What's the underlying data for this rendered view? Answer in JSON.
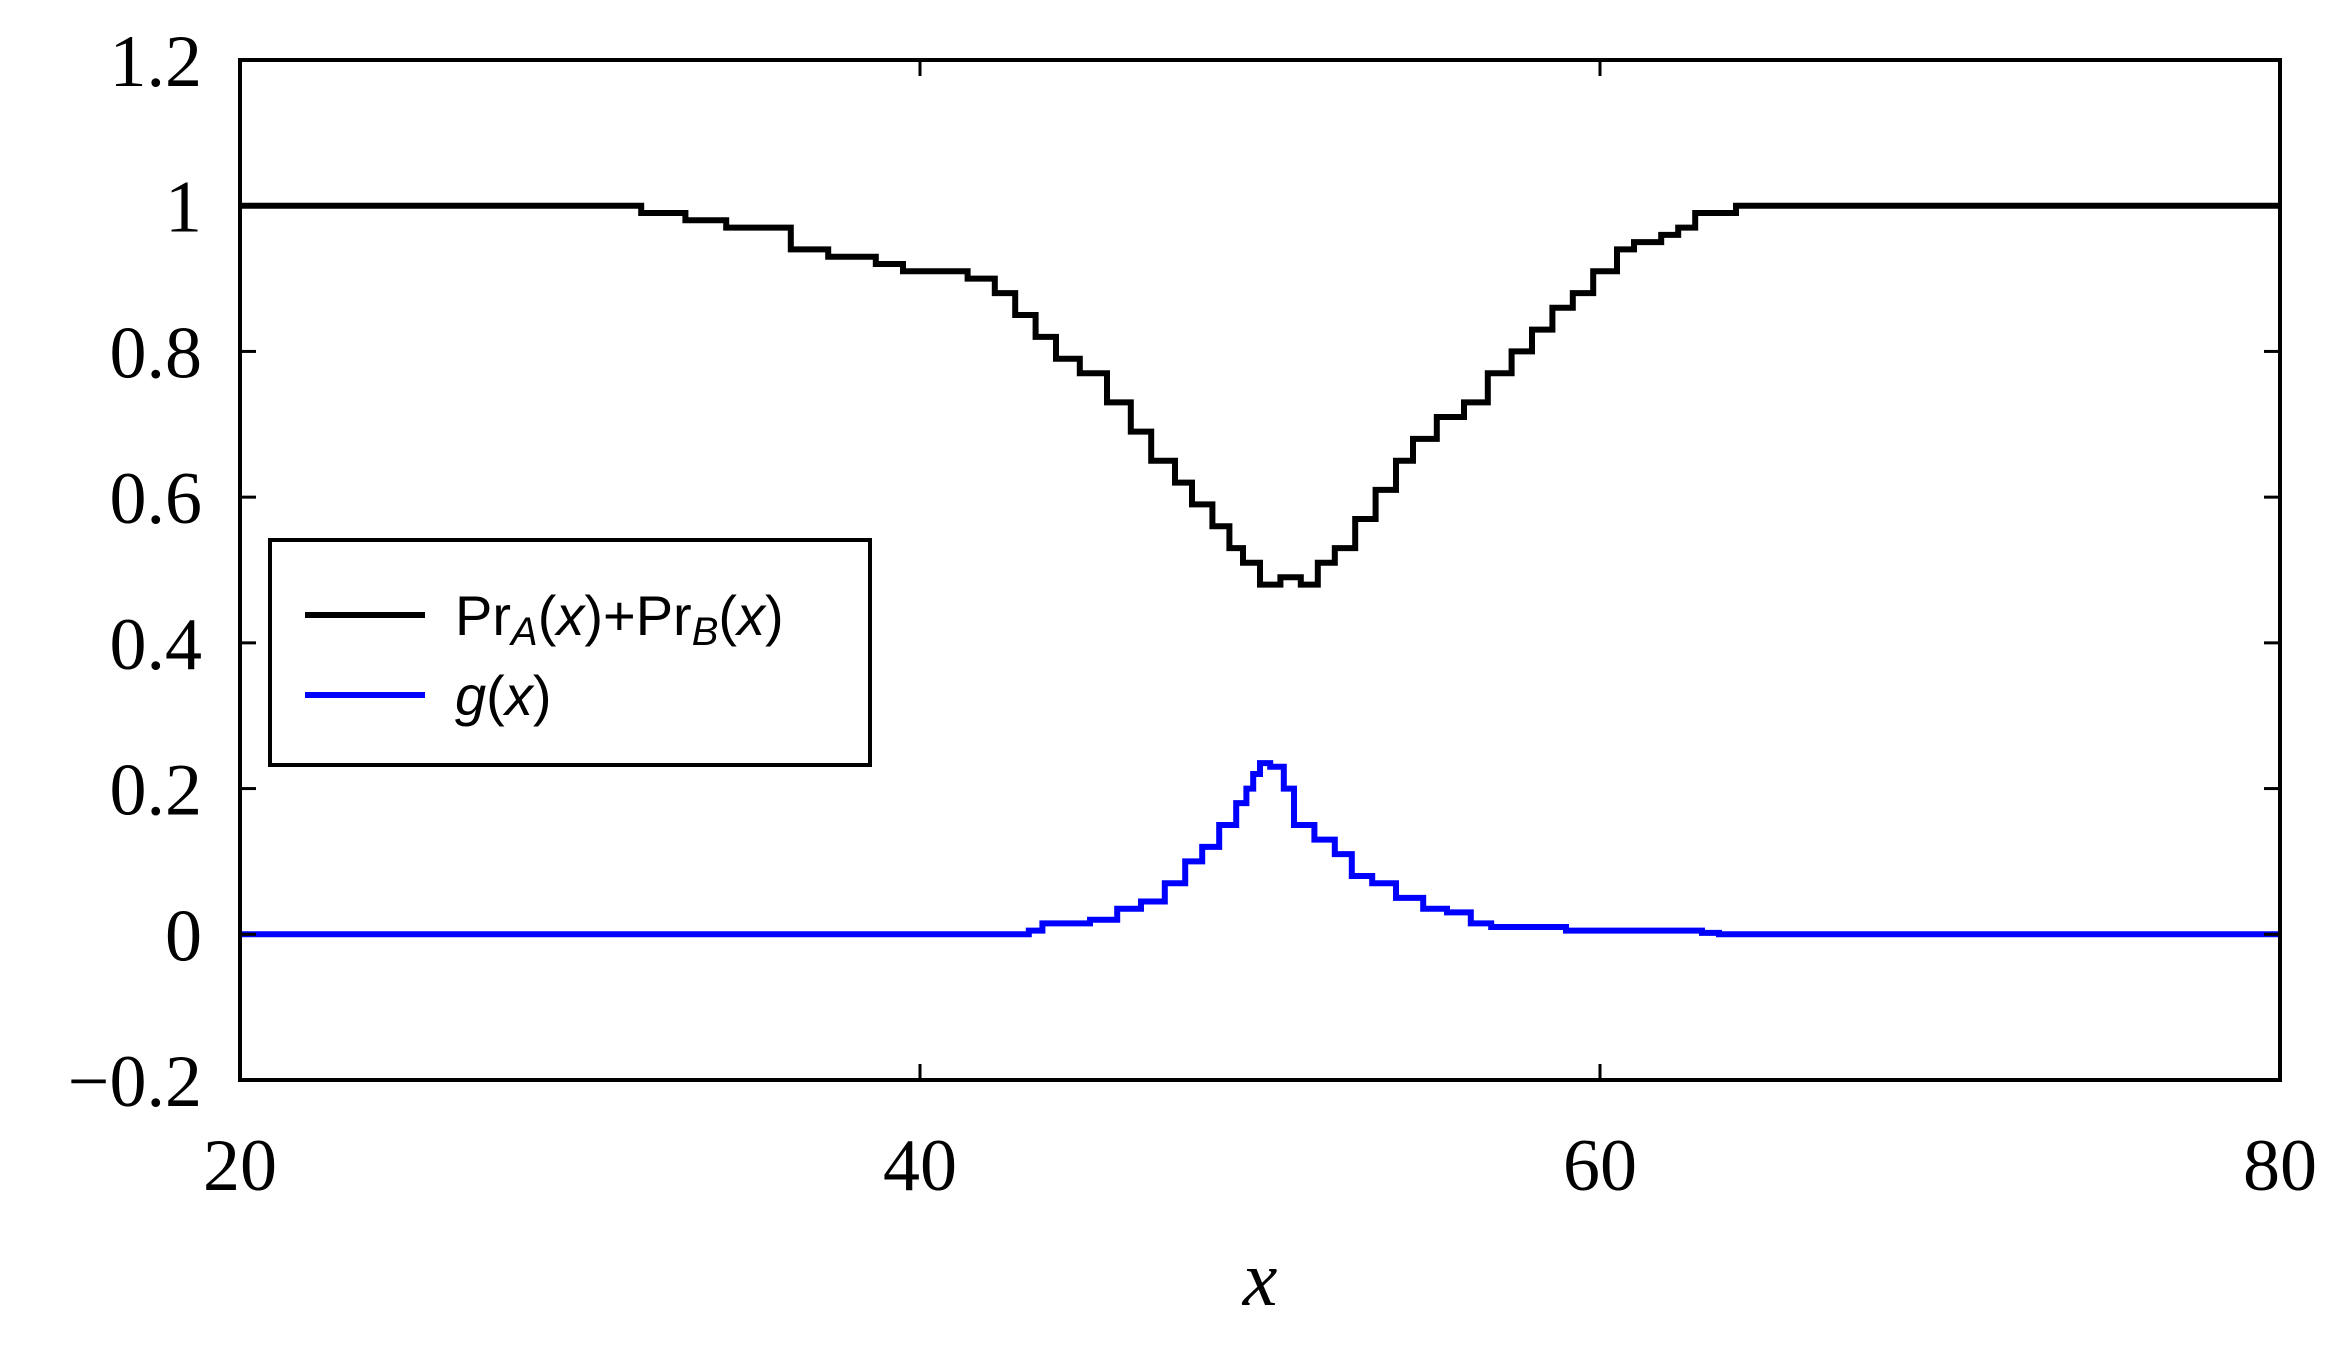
{
  "chart_data": {
    "type": "line",
    "title": "",
    "xlabel": "x",
    "ylabel": "",
    "xlim": [
      20,
      80
    ],
    "ylim": [
      -0.2,
      1.2
    ],
    "x_ticks": [
      20,
      40,
      60,
      80
    ],
    "x_tick_labels": [
      "20",
      "40",
      "60",
      "80"
    ],
    "y_ticks": [
      -0.2,
      0,
      0.2,
      0.4,
      0.6,
      0.8,
      1.0,
      1.2
    ],
    "y_tick_labels": [
      "−0.2",
      "0",
      "0.2",
      "0.4",
      "0.6",
      "0.8",
      "1",
      "1.2"
    ],
    "grid": false,
    "legend_position": "left",
    "series": [
      {
        "name": "Pr_A(x)+Pr_B(x)",
        "legend_parts": [
          "Pr",
          "A",
          "(",
          "x",
          ")+Pr",
          "B",
          "(",
          "x",
          ")"
        ],
        "color": "#000000",
        "step": true,
        "x": [
          20,
          31.8,
          33.1,
          34.3,
          36.2,
          37.3,
          38.7,
          39.5,
          41.4,
          42.2,
          42.8,
          43.4,
          44.0,
          44.7,
          45.5,
          46.2,
          46.8,
          47.5,
          48.0,
          48.6,
          49.1,
          49.5,
          50.0,
          50.6,
          51.2,
          51.7,
          52.2,
          52.8,
          53.4,
          54.0,
          54.5,
          55.2,
          56.0,
          56.7,
          57.4,
          58.0,
          58.6,
          59.2,
          59.8,
          60.5,
          61.0,
          61.8,
          62.3,
          62.8,
          64.0,
          80
        ],
        "y": [
          1.0,
          0.99,
          0.98,
          0.97,
          0.94,
          0.93,
          0.92,
          0.91,
          0.9,
          0.88,
          0.85,
          0.82,
          0.79,
          0.77,
          0.73,
          0.69,
          0.65,
          0.62,
          0.59,
          0.56,
          0.53,
          0.51,
          0.48,
          0.49,
          0.48,
          0.51,
          0.53,
          0.57,
          0.61,
          0.65,
          0.68,
          0.71,
          0.73,
          0.77,
          0.8,
          0.83,
          0.86,
          0.88,
          0.91,
          0.94,
          0.95,
          0.96,
          0.97,
          0.99,
          1.0,
          1.0
        ]
      },
      {
        "name": "g(x)",
        "legend_parts": [
          "g",
          "(",
          "x",
          ")"
        ],
        "color": "#0000ff",
        "step": true,
        "x": [
          20,
          43.2,
          43.6,
          45.0,
          45.8,
          46.5,
          47.2,
          47.8,
          48.3,
          48.8,
          49.3,
          49.6,
          49.8,
          50.0,
          50.3,
          50.7,
          51.0,
          51.6,
          52.2,
          52.7,
          53.3,
          54.0,
          54.8,
          55.5,
          56.2,
          56.8,
          58.0,
          59.0,
          63.0,
          63.5,
          80
        ],
        "y": [
          0.0,
          0.005,
          0.015,
          0.02,
          0.035,
          0.045,
          0.07,
          0.1,
          0.12,
          0.15,
          0.18,
          0.2,
          0.22,
          0.235,
          0.23,
          0.2,
          0.15,
          0.13,
          0.11,
          0.08,
          0.07,
          0.05,
          0.035,
          0.03,
          0.015,
          0.01,
          0.01,
          0.005,
          0.002,
          0.0,
          0.0
        ]
      }
    ]
  }
}
